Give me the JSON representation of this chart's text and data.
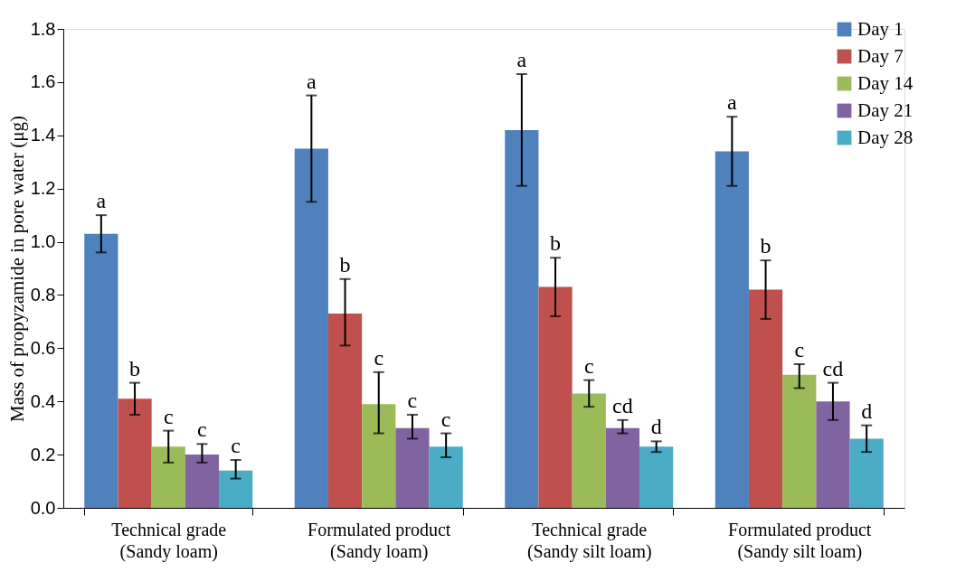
{
  "chart_data": {
    "type": "bar",
    "ylabel": "Mass of propyzamide in pore water (μg)",
    "categories": [
      "Technical grade\n(Sandy loam)",
      "Formulated product\n(Sandy loam)",
      "Technical grade\n(Sandy silt loam)",
      "Formulated product\n(Sandy silt loam)"
    ],
    "series": [
      {
        "name": "Day 1",
        "color": "#4f81bd",
        "values": [
          1.03,
          1.35,
          1.42,
          1.34
        ],
        "errors": [
          [
            0.96,
            1.1
          ],
          [
            1.15,
            1.55
          ],
          [
            1.21,
            1.63
          ],
          [
            1.21,
            1.47
          ]
        ],
        "value_labels": [
          "a",
          "a",
          "a",
          "a"
        ]
      },
      {
        "name": "Day 7",
        "color": "#c0504d",
        "values": [
          0.41,
          0.73,
          0.83,
          0.82
        ],
        "errors": [
          [
            0.35,
            0.47
          ],
          [
            0.61,
            0.86
          ],
          [
            0.72,
            0.94
          ],
          [
            0.71,
            0.93
          ]
        ],
        "value_labels": [
          "b",
          "b",
          "b",
          "b"
        ]
      },
      {
        "name": "Day 14",
        "color": "#9bbb59",
        "values": [
          0.23,
          0.39,
          0.43,
          0.5
        ],
        "errors": [
          [
            0.17,
            0.29
          ],
          [
            0.28,
            0.51
          ],
          [
            0.38,
            0.48
          ],
          [
            0.45,
            0.54
          ]
        ],
        "value_labels": [
          "c",
          "c",
          "c",
          "c"
        ]
      },
      {
        "name": "Day 21",
        "color": "#8064a2",
        "values": [
          0.2,
          0.3,
          0.3,
          0.4
        ],
        "errors": [
          [
            0.17,
            0.24
          ],
          [
            0.26,
            0.35
          ],
          [
            0.28,
            0.33
          ],
          [
            0.33,
            0.47
          ]
        ],
        "value_labels": [
          "c",
          "c",
          "cd",
          "cd"
        ]
      },
      {
        "name": "Day 28",
        "color": "#4bacc6",
        "values": [
          0.14,
          0.23,
          0.23,
          0.26
        ],
        "errors": [
          [
            0.11,
            0.18
          ],
          [
            0.19,
            0.28
          ],
          [
            0.21,
            0.25
          ],
          [
            0.21,
            0.31
          ]
        ],
        "value_labels": [
          "c",
          "c",
          "d",
          "d"
        ]
      }
    ],
    "ylim": [
      0,
      1.8
    ],
    "yticks": [
      {
        "value": 0,
        "label": "0.0"
      },
      0.2,
      0.4,
      0.6,
      0.8,
      {
        "value": 1,
        "label": "1.0"
      },
      1.2,
      1.4,
      1.6,
      1.8
    ],
    "grid": false,
    "legend": "top right"
  }
}
